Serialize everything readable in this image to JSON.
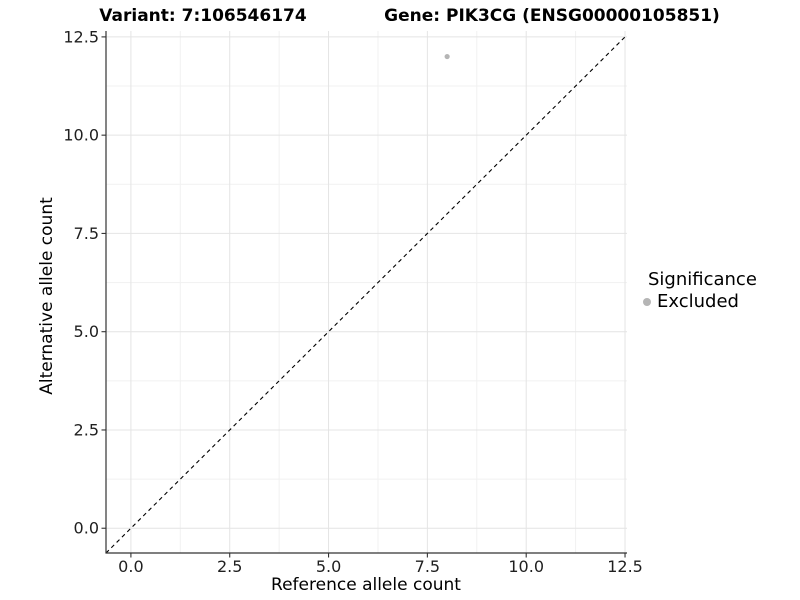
{
  "chart_data": {
    "type": "scatter",
    "title_left": "Variant: 7:106546174",
    "title_right": "Gene: PIK3CG (ENSG00000105851)",
    "xlabel": "Reference allele count",
    "ylabel": "Alternative allele count",
    "xlim": [
      -0.63,
      12.55
    ],
    "ylim": [
      -0.63,
      12.65
    ],
    "x_ticks": [
      {
        "value": 0,
        "label": "0.0"
      },
      {
        "value": 2.5,
        "label": "2.5"
      },
      {
        "value": 5,
        "label": "5.0"
      },
      {
        "value": 7.5,
        "label": "7.5"
      },
      {
        "value": 10,
        "label": "10.0"
      },
      {
        "value": 12.5,
        "label": "12.5"
      }
    ],
    "y_ticks": [
      {
        "value": 0,
        "label": "0.0"
      },
      {
        "value": 2.5,
        "label": "2.5"
      },
      {
        "value": 5,
        "label": "5.0"
      },
      {
        "value": 7.5,
        "label": "7.5"
      },
      {
        "value": 10,
        "label": "10.0"
      },
      {
        "value": 12.5,
        "label": "12.5"
      }
    ],
    "x_minor": [
      1.25,
      3.75,
      6.25,
      8.75,
      11.25
    ],
    "y_minor": [
      1.25,
      3.75,
      6.25,
      8.75,
      11.25
    ],
    "grid": true,
    "reference_line": {
      "type": "identity",
      "style": "dashed",
      "color": "#000000"
    },
    "series": [
      {
        "name": "Excluded",
        "color": "#b5b5b5",
        "points": [
          {
            "x": 8,
            "y": 12
          }
        ]
      }
    ],
    "legend": {
      "title": "Significance",
      "position": "right",
      "entries": [
        {
          "label": "Excluded",
          "color": "#b5b5b5"
        }
      ]
    }
  },
  "colors": {
    "grid_major": "#e4e4e4",
    "grid_minor": "#f1f1f1",
    "axis_line": "#333333",
    "tick_mark": "#333333",
    "tick_text": "#1f1f1f",
    "title_text": "#000000"
  }
}
